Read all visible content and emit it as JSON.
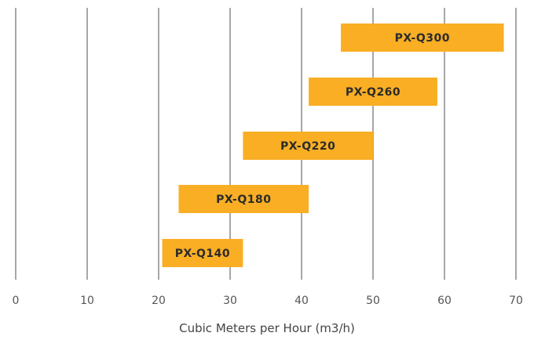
{
  "chart_data": {
    "type": "bar",
    "orientation": "horizontal-range",
    "xlabel": "Cubic Meters per Hour (m3/h)",
    "xlim": [
      0,
      70
    ],
    "x_ticks": [
      0,
      10,
      20,
      30,
      40,
      50,
      60,
      70
    ],
    "grid": "vertical",
    "bar_color": "#F9AE24",
    "series": [
      {
        "label": "PX-Q140",
        "start": 20.5,
        "end": 31.8
      },
      {
        "label": "PX-Q180",
        "start": 22.8,
        "end": 41.0
      },
      {
        "label": "PX-Q220",
        "start": 31.8,
        "end": 50.0
      },
      {
        "label": "PX-Q260",
        "start": 41.0,
        "end": 59.0
      },
      {
        "label": "PX-Q300",
        "start": 45.5,
        "end": 68.3
      }
    ]
  }
}
